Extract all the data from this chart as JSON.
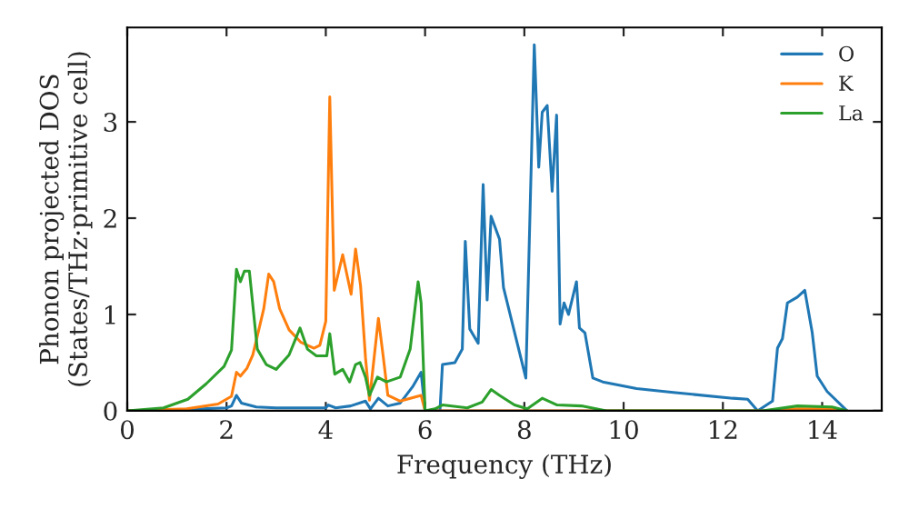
{
  "chart_data": {
    "type": "line",
    "xlabel": "Frequency (THz)",
    "ylabel": "Phonon projected DOS\n(States/THz·primitive cell)",
    "xlim": [
      0,
      15.2
    ],
    "ylim": [
      0,
      3.98
    ],
    "xticks": [
      0,
      2,
      4,
      6,
      8,
      10,
      12,
      14
    ],
    "yticks": [
      0,
      1,
      2,
      3
    ],
    "legend": "top right",
    "grid": false,
    "series": [
      {
        "name": "O",
        "color": "#1f77b4",
        "x": [
          0,
          1,
          2,
          2.1,
          2.2,
          2.3,
          2.6,
          3,
          3.5,
          4,
          4.05,
          4.2,
          4.5,
          4.8,
          4.9,
          5.06,
          5.25,
          5.5,
          5.75,
          5.92,
          6.0,
          6.3,
          6.35,
          6.6,
          6.75,
          6.81,
          6.9,
          7.07,
          7.17,
          7.25,
          7.33,
          7.5,
          7.58,
          7.79,
          8.03,
          8.2,
          8.29,
          8.36,
          8.46,
          8.56,
          8.65,
          8.72,
          8.8,
          8.89,
          9.05,
          9.11,
          9.22,
          9.38,
          9.58,
          10.26,
          11,
          12.2,
          12.5,
          12.7,
          13.0,
          13.1,
          13.2,
          13.3,
          13.5,
          13.65,
          13.8,
          13.9,
          14.1,
          14.5
        ],
        "values": [
          0,
          0.01,
          0.03,
          0.05,
          0.16,
          0.08,
          0.04,
          0.03,
          0.03,
          0.03,
          0.06,
          0.03,
          0.05,
          0.1,
          0.02,
          0.13,
          0.05,
          0.08,
          0.25,
          0.4,
          0,
          0,
          0.48,
          0.5,
          0.64,
          1.76,
          0.85,
          0.7,
          2.35,
          1.15,
          2.02,
          1.78,
          1.28,
          0.84,
          0.34,
          3.8,
          2.53,
          3.1,
          3.17,
          2.28,
          3.07,
          0.9,
          1.12,
          1.0,
          1.34,
          0.86,
          0.81,
          0.34,
          0.3,
          0.23,
          0.19,
          0.13,
          0.12,
          0,
          0.1,
          0.65,
          0.75,
          1.12,
          1.18,
          1.25,
          0.81,
          0.36,
          0.2,
          0
        ]
      },
      {
        "name": "K",
        "color": "#ff7f0e",
        "x": [
          0,
          1.2,
          1.83,
          2.1,
          2.2,
          2.28,
          2.41,
          2.53,
          2.65,
          2.75,
          2.85,
          2.95,
          3.07,
          3.26,
          3.5,
          3.76,
          3.88,
          4.0,
          4.08,
          4.17,
          4.34,
          4.51,
          4.6,
          4.7,
          4.8,
          4.88,
          5.06,
          5.16,
          5.25,
          5.5,
          5.92,
          6.0,
          8,
          12.8,
          13.5,
          14.2,
          14.5
        ],
        "values": [
          0,
          0.02,
          0.07,
          0.15,
          0.4,
          0.36,
          0.44,
          0.58,
          0.84,
          1.06,
          1.42,
          1.34,
          1.06,
          0.84,
          0.71,
          0.65,
          0.68,
          0.93,
          3.26,
          1.25,
          1.62,
          1.21,
          1.68,
          1.3,
          0.55,
          0.11,
          0.96,
          0.55,
          0.16,
          0.1,
          0.16,
          0,
          0,
          0,
          0.02,
          0.02,
          0
        ]
      },
      {
        "name": "La",
        "color": "#2ca02c",
        "x": [
          0,
          0.73,
          1.22,
          1.59,
          1.95,
          2.1,
          2.2,
          2.28,
          2.36,
          2.46,
          2.62,
          2.8,
          3.0,
          3.26,
          3.48,
          3.63,
          3.81,
          4.02,
          4.08,
          4.18,
          4.34,
          4.48,
          4.6,
          4.69,
          4.8,
          4.88,
          5.04,
          5.22,
          5.5,
          5.7,
          5.86,
          5.92,
          6.0,
          6.2,
          6.35,
          6.85,
          7.15,
          7.33,
          7.5,
          7.8,
          8.06,
          8.36,
          8.66,
          9.15,
          9.65,
          12.8,
          13.5,
          14.2,
          14.5
        ],
        "values": [
          0,
          0.03,
          0.12,
          0.28,
          0.46,
          0.63,
          1.47,
          1.34,
          1.45,
          1.45,
          0.64,
          0.48,
          0.43,
          0.58,
          0.86,
          0.64,
          0.57,
          0.57,
          0.8,
          0.38,
          0.43,
          0.3,
          0.48,
          0.5,
          0.35,
          0.16,
          0.35,
          0.3,
          0.35,
          0.64,
          1.34,
          1.12,
          0,
          0.02,
          0.06,
          0.03,
          0.09,
          0.22,
          0.16,
          0.06,
          0.02,
          0.13,
          0.06,
          0.05,
          0,
          0,
          0.05,
          0.04,
          0
        ]
      }
    ]
  }
}
